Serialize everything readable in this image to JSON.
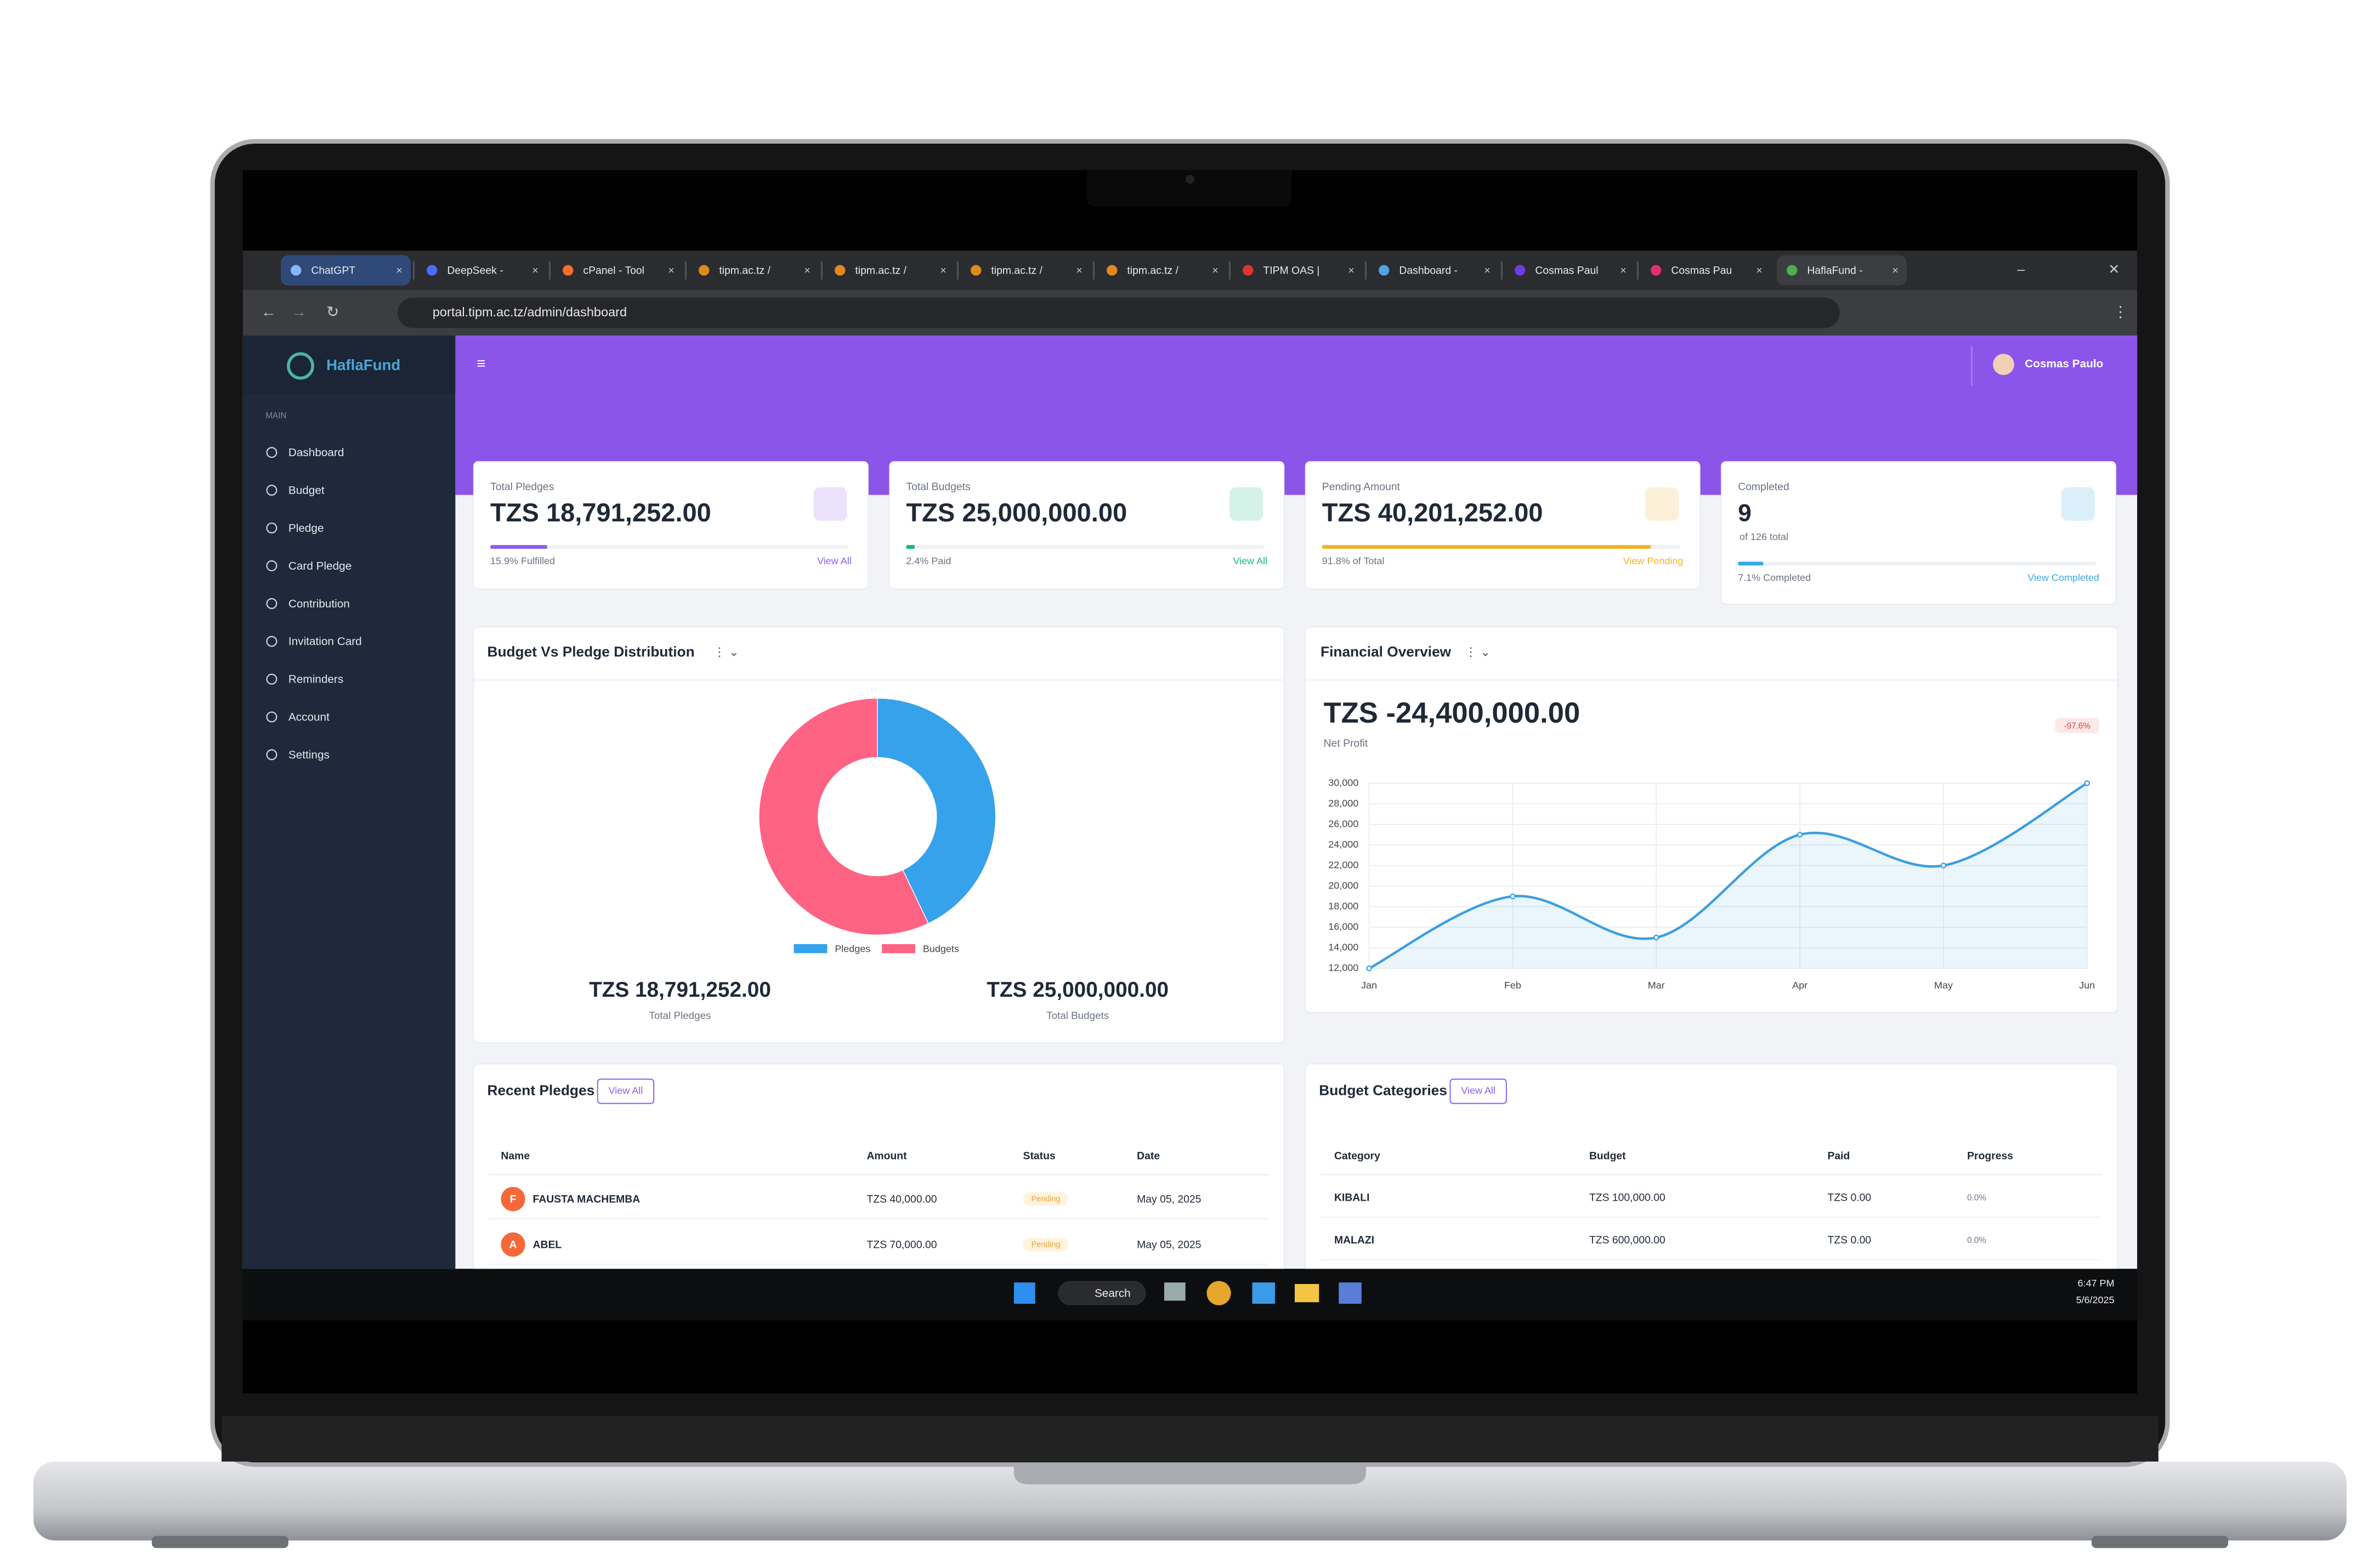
{
  "browser": {
    "tabs": [
      "ChatGPT",
      "DeepSeek - ",
      "cPanel - Tool",
      "tipm.ac.tz / ",
      "tipm.ac.tz / ",
      "tipm.ac.tz / ",
      "tipm.ac.tz / ",
      "TIPM OAS | ",
      "Dashboard - ",
      "Cosmas Paul",
      "Cosmas Pau",
      "HaflaFund - "
    ],
    "url": "portal.tipm.ac.tz/admin/dashboard"
  },
  "sidebar": {
    "brand": "HaflaFund",
    "section": "MAIN",
    "items": [
      "Dashboard",
      "Budget",
      "Pledge",
      "Card Pledge",
      "Contribution",
      "Invitation Card",
      "Reminders",
      "Account",
      "Settings"
    ]
  },
  "header": {
    "user": "Cosmas Paulo"
  },
  "stats": [
    {
      "label": "Total Pledges",
      "value": "TZS 18,791,252.00",
      "progress": 15.9,
      "note": "15.9% Fulfilled",
      "link": "View All",
      "color": "#8b5cf6"
    },
    {
      "label": "Total Budgets",
      "value": "TZS 25,000,000.00",
      "progress": 2.4,
      "note": "2.4% Paid",
      "link": "View All",
      "color": "#10b981"
    },
    {
      "label": "Pending Amount",
      "value": "TZS 40,201,252.00",
      "progress": 91.8,
      "note": "91.8% of Total",
      "link": "View Pending",
      "color": "#f0b429"
    },
    {
      "label": "Completed",
      "value": "9",
      "sub": "of 126 total",
      "progress": 7.1,
      "note": "7.1% Completed",
      "link": "View Completed",
      "color": "#38a9e4"
    }
  ],
  "chart_data": [
    {
      "type": "pie",
      "title": "Budget Vs Pledge Distribution",
      "categories": [
        "Pledges",
        "Budgets"
      ],
      "values": [
        18791252,
        25000000
      ],
      "colors": [
        "#36a2eb",
        "#ff6384"
      ],
      "legend": "bottom",
      "totals": [
        {
          "value": "TZS 18,791,252.00",
          "label": "Total Pledges"
        },
        {
          "value": "TZS 25,000,000.00",
          "label": "Total Budgets"
        }
      ]
    },
    {
      "type": "line",
      "title": "Financial Overview",
      "headline": "TZS -24,400,000.00",
      "headline_label": "Net Profit",
      "badge": "-97.6%",
      "x": [
        "Jan",
        "Feb",
        "Mar",
        "Apr",
        "May",
        "Jun"
      ],
      "values": [
        12000,
        19000,
        15000,
        25000,
        22000,
        30000
      ],
      "color": "#3b9ee0",
      "ylim": [
        12000,
        30000
      ],
      "yticks": [
        {
          "value": 12000,
          "label": "12,000"
        },
        {
          "value": 14000,
          "label": "14,000"
        },
        {
          "value": 16000,
          "label": "16,000"
        },
        {
          "value": 18000,
          "label": "18,000"
        },
        {
          "value": 20000,
          "label": "20,000"
        },
        {
          "value": 22000,
          "label": "22,000"
        },
        {
          "value": 24000,
          "label": "24,000"
        },
        {
          "value": 26000,
          "label": "26,000"
        },
        {
          "value": 28000,
          "label": "28,000"
        },
        {
          "value": 30000,
          "label": "30,000"
        }
      ],
      "grid": true
    }
  ],
  "recent_pledges": {
    "title": "Recent Pledges",
    "link": "View All",
    "columns": [
      "Name",
      "Amount",
      "Status",
      "Date"
    ],
    "rows": [
      [
        "F",
        "FAUSTA MACHEMBA",
        "TZS 40,000.00",
        "Pending",
        "May 05, 2025"
      ],
      [
        "A",
        "ABEL",
        "TZS 70,000.00",
        "Pending",
        "May 05, 2025"
      ]
    ]
  },
  "budget_categories": {
    "title": "Budget Categories",
    "link": "View All",
    "columns": [
      "Category",
      "Budget",
      "Paid",
      "Progress"
    ],
    "rows": [
      [
        "KIBALI",
        "TZS 100,000.00",
        "TZS 0.00",
        "0.0%"
      ],
      [
        "MALAZI",
        "TZS 600,000.00",
        "TZS 0.00",
        "0.0%"
      ]
    ]
  },
  "taskbar": {
    "search": "Search",
    "time": "6:47 PM",
    "date": "5/6/2025"
  }
}
